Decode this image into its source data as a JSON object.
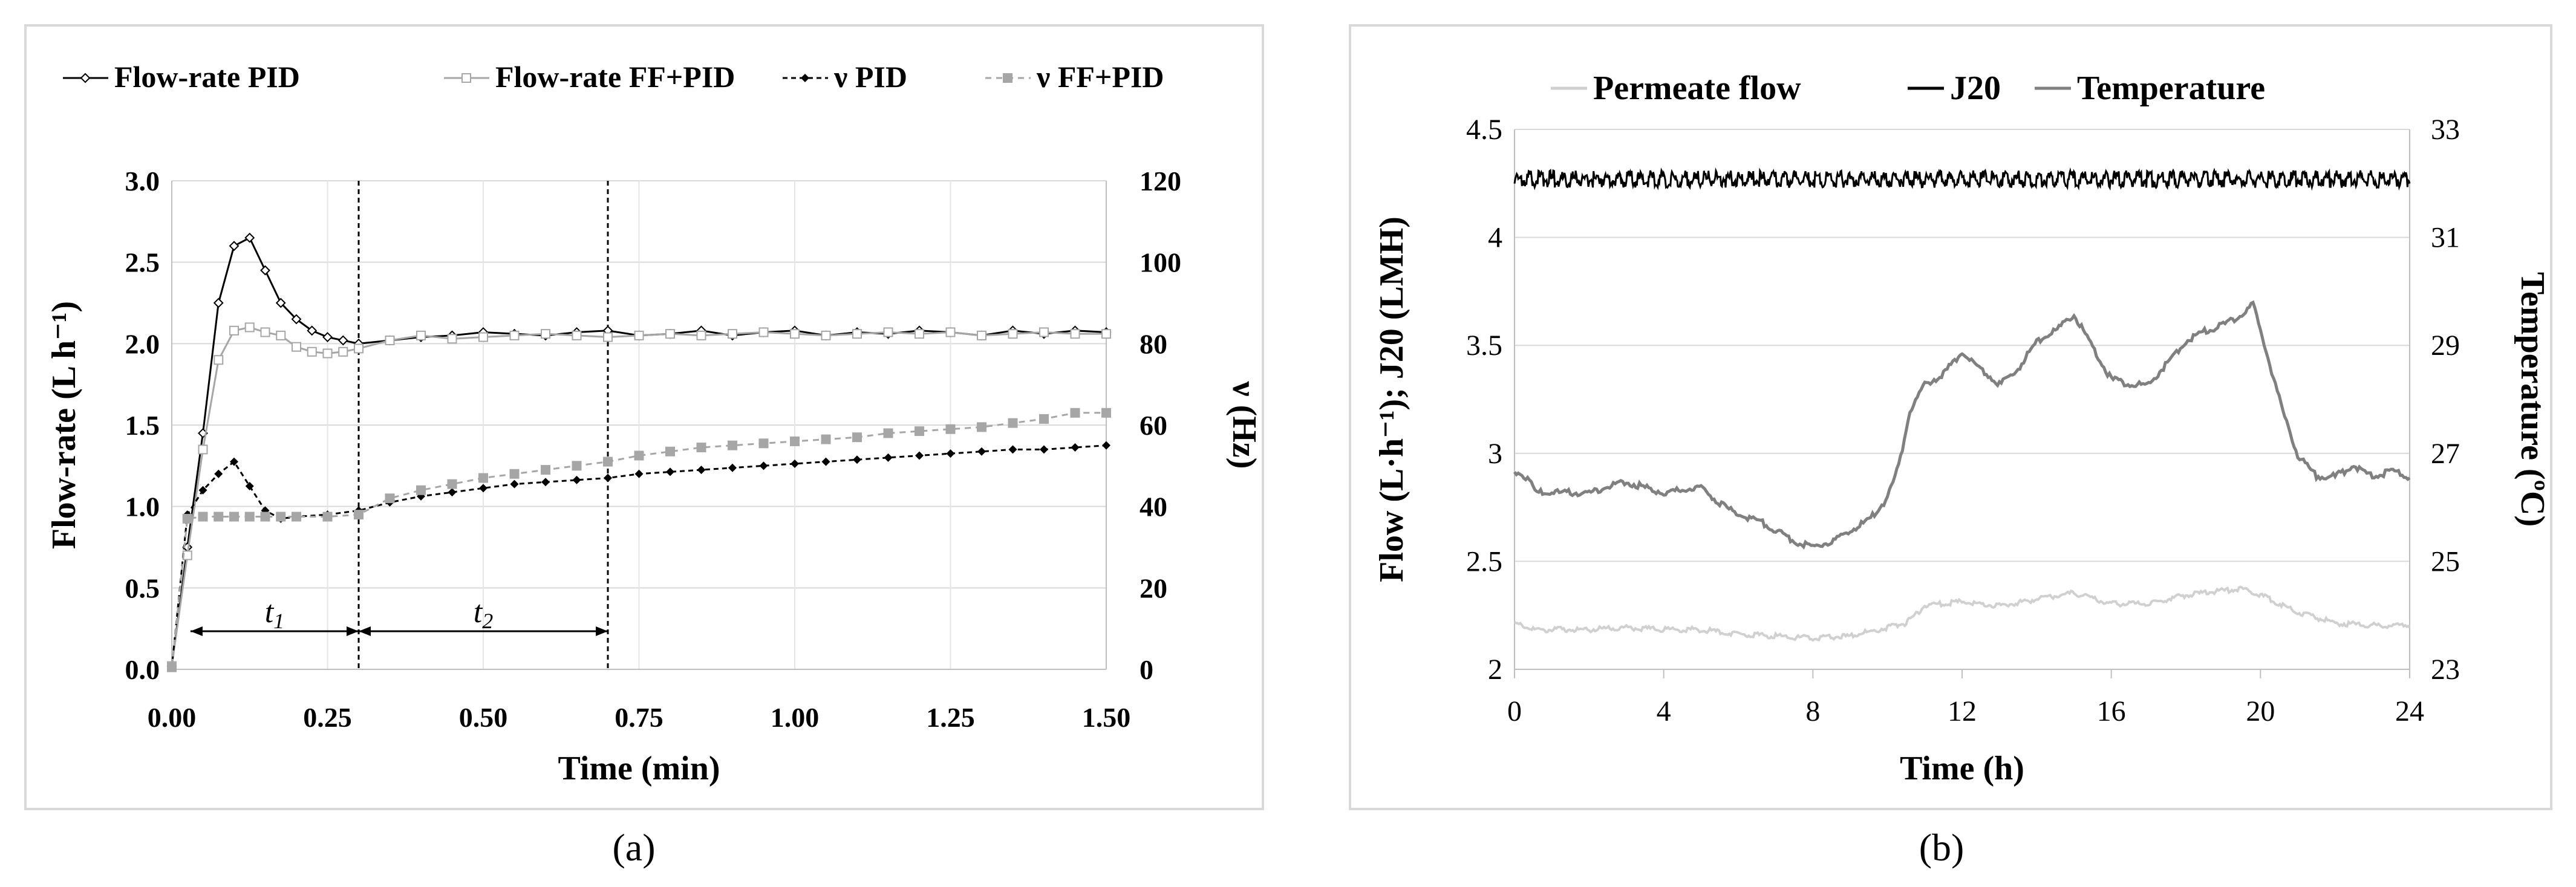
{
  "chart_data": [
    {
      "id": "a",
      "type": "line",
      "caption": "(a)",
      "xlabel": "Time (min)",
      "ylabel": "Flow-rate (L h⁻¹)",
      "y2label": "ν (Hz)",
      "xlim": [
        0,
        1.5
      ],
      "ylim": [
        0,
        3.0
      ],
      "y2lim": [
        0,
        120
      ],
      "x_ticks": [
        "0.00",
        "0.25",
        "0.50",
        "0.75",
        "1.00",
        "1.25",
        "1.50"
      ],
      "y_ticks": [
        "0.0",
        "0.5",
        "1.0",
        "1.5",
        "2.0",
        "2.5",
        "3.0"
      ],
      "y2_ticks": [
        "0",
        "20",
        "40",
        "60",
        "80",
        "100",
        "120"
      ],
      "legend": [
        "Flow-rate PID",
        "Flow-rate FF+PID",
        "ν PID",
        "ν FF+PID"
      ],
      "annotations": {
        "t1": "t",
        "t1_sub": "1",
        "t2": "t",
        "t2_sub": "2",
        "t1_start": 0.0,
        "t1_end": 0.3,
        "t2_end": 0.7
      },
      "series": [
        {
          "name": "Flow-rate PID",
          "axis": "left",
          "color": "#000000",
          "x": [
            0,
            0.025,
            0.05,
            0.075,
            0.1,
            0.125,
            0.15,
            0.175,
            0.2,
            0.225,
            0.25,
            0.275,
            0.3,
            0.35,
            0.4,
            0.45,
            0.5,
            0.55,
            0.6,
            0.65,
            0.7,
            0.75,
            0.8,
            0.85,
            0.9,
            0.95,
            1.0,
            1.05,
            1.1,
            1.15,
            1.2,
            1.25,
            1.3,
            1.35,
            1.4,
            1.45,
            1.5
          ],
          "values": [
            0.02,
            0.75,
            1.45,
            2.25,
            2.6,
            2.65,
            2.45,
            2.25,
            2.15,
            2.08,
            2.04,
            2.02,
            2.0,
            2.02,
            2.04,
            2.05,
            2.07,
            2.06,
            2.05,
            2.07,
            2.08,
            2.05,
            2.06,
            2.08,
            2.05,
            2.07,
            2.08,
            2.05,
            2.07,
            2.06,
            2.08,
            2.07,
            2.05,
            2.08,
            2.06,
            2.08,
            2.07
          ]
        },
        {
          "name": "Flow-rate FF+PID",
          "axis": "left",
          "color": "#a6a6a6",
          "x": [
            0,
            0.025,
            0.05,
            0.075,
            0.1,
            0.125,
            0.15,
            0.175,
            0.2,
            0.225,
            0.25,
            0.275,
            0.3,
            0.35,
            0.4,
            0.45,
            0.5,
            0.55,
            0.6,
            0.65,
            0.7,
            0.75,
            0.8,
            0.85,
            0.9,
            0.95,
            1.0,
            1.05,
            1.1,
            1.15,
            1.2,
            1.25,
            1.3,
            1.35,
            1.4,
            1.45,
            1.5
          ],
          "values": [
            0.02,
            0.7,
            1.35,
            1.9,
            2.08,
            2.1,
            2.07,
            2.05,
            1.98,
            1.95,
            1.94,
            1.95,
            1.97,
            2.02,
            2.05,
            2.03,
            2.04,
            2.05,
            2.06,
            2.05,
            2.04,
            2.05,
            2.06,
            2.05,
            2.06,
            2.07,
            2.06,
            2.05,
            2.06,
            2.07,
            2.06,
            2.07,
            2.05,
            2.06,
            2.07,
            2.06,
            2.06
          ]
        },
        {
          "name": "ν PID",
          "axis": "right",
          "color": "#000000",
          "x": [
            0,
            0.025,
            0.05,
            0.075,
            0.1,
            0.125,
            0.15,
            0.175,
            0.2,
            0.25,
            0.3,
            0.35,
            0.4,
            0.45,
            0.5,
            0.55,
            0.6,
            0.65,
            0.7,
            0.75,
            0.8,
            0.85,
            0.9,
            0.95,
            1.0,
            1.05,
            1.1,
            1.15,
            1.2,
            1.25,
            1.3,
            1.35,
            1.4,
            1.45,
            1.5
          ],
          "values": [
            0.5,
            38,
            44,
            48,
            51,
            45,
            39,
            37,
            37.5,
            38,
            39,
            41,
            42.5,
            43.5,
            44.5,
            45.5,
            46,
            46.5,
            47,
            48,
            48.5,
            49,
            49.5,
            50,
            50.5,
            51,
            51.5,
            52,
            52.5,
            53,
            53.5,
            54,
            54,
            54.5,
            55
          ]
        },
        {
          "name": "ν FF+PID",
          "axis": "right",
          "color": "#a6a6a6",
          "x": [
            0,
            0.025,
            0.05,
            0.075,
            0.1,
            0.125,
            0.15,
            0.175,
            0.2,
            0.25,
            0.3,
            0.35,
            0.4,
            0.45,
            0.5,
            0.55,
            0.6,
            0.65,
            0.7,
            0.75,
            0.8,
            0.85,
            0.9,
            0.95,
            1.0,
            1.05,
            1.1,
            1.15,
            1.2,
            1.25,
            1.3,
            1.35,
            1.4,
            1.45,
            1.5
          ],
          "values": [
            0.5,
            37,
            37.5,
            37.5,
            37.5,
            37.5,
            37.5,
            37.5,
            37.5,
            37.5,
            38,
            42,
            44,
            45.5,
            47,
            48,
            49,
            50,
            51,
            52.5,
            53.5,
            54.5,
            55,
            55.5,
            56,
            56.5,
            57,
            58,
            58.5,
            59,
            59.5,
            60.5,
            61.5,
            63,
            63
          ]
        }
      ]
    },
    {
      "id": "b",
      "type": "line",
      "caption": "(b)",
      "xlabel": "Time (h)",
      "ylabel": "Flow (L·h⁻¹); J20 (LMH)",
      "y2label": "Temperature (ºC)",
      "xlim": [
        0,
        24
      ],
      "ylim": [
        2,
        4.5
      ],
      "y2lim": [
        23,
        33
      ],
      "x_ticks": [
        "0",
        "4",
        "8",
        "12",
        "16",
        "20",
        "24"
      ],
      "y_ticks": [
        "2",
        "2.5",
        "3",
        "3.5",
        "4",
        "4.5"
      ],
      "y2_ticks": [
        "23",
        "25",
        "27",
        "29",
        "31",
        "33"
      ],
      "legend": [
        "Permeate flow",
        "J20",
        "Temperature"
      ],
      "series": [
        {
          "name": "Permeate flow",
          "axis": "left",
          "color": "#d0d0d0",
          "x": [
            0,
            0.5,
            1,
            2,
            3,
            4,
            5,
            6,
            7,
            8,
            9,
            10,
            10.5,
            11,
            12,
            13,
            14,
            15,
            16,
            17,
            18,
            19,
            19.5,
            20,
            21,
            22,
            23,
            24
          ],
          "values": [
            2.22,
            2.19,
            2.19,
            2.19,
            2.2,
            2.19,
            2.19,
            2.17,
            2.16,
            2.15,
            2.16,
            2.2,
            2.22,
            2.3,
            2.32,
            2.3,
            2.33,
            2.36,
            2.31,
            2.31,
            2.35,
            2.37,
            2.38,
            2.35,
            2.27,
            2.22,
            2.21,
            2.21
          ]
        },
        {
          "name": "J20",
          "axis": "left",
          "color": "#000000",
          "x": [
            0,
            2,
            4,
            6,
            8,
            10,
            12,
            14,
            16,
            18,
            20,
            22,
            24
          ],
          "values": [
            4.29,
            4.29,
            4.29,
            4.29,
            4.29,
            4.29,
            4.29,
            4.29,
            4.29,
            4.29,
            4.29,
            4.29,
            4.29
          ]
        },
        {
          "name": "Temperature",
          "axis": "right",
          "color": "#808080",
          "x": [
            0,
            0.3,
            0.6,
            1,
            2,
            3,
            4,
            5,
            5.5,
            6,
            6.5,
            7,
            7.5,
            8,
            8.5,
            9,
            9.5,
            10,
            10.3,
            10.6,
            11,
            11.5,
            12,
            12.5,
            13,
            13.5,
            14,
            14.5,
            15,
            15.5,
            16,
            16.5,
            17,
            17.5,
            18,
            18.5,
            19,
            19.5,
            19.8,
            20.2,
            20.6,
            21,
            21.5,
            22,
            22.5,
            23,
            23.5,
            24
          ],
          "values": [
            26.7,
            26.6,
            26.3,
            26.3,
            26.3,
            26.5,
            26.3,
            26.4,
            26.1,
            25.9,
            25.8,
            25.6,
            25.4,
            25.3,
            25.4,
            25.6,
            25.8,
            26.2,
            26.8,
            27.8,
            28.3,
            28.5,
            28.9,
            28.6,
            28.3,
            28.6,
            29.1,
            29.3,
            29.6,
            29.0,
            28.4,
            28.3,
            28.3,
            28.7,
            29.1,
            29.3,
            29.4,
            29.6,
            29.8,
            28.8,
            27.8,
            27.0,
            26.6,
            26.6,
            26.8,
            26.6,
            26.7,
            26.6
          ]
        }
      ]
    }
  ]
}
